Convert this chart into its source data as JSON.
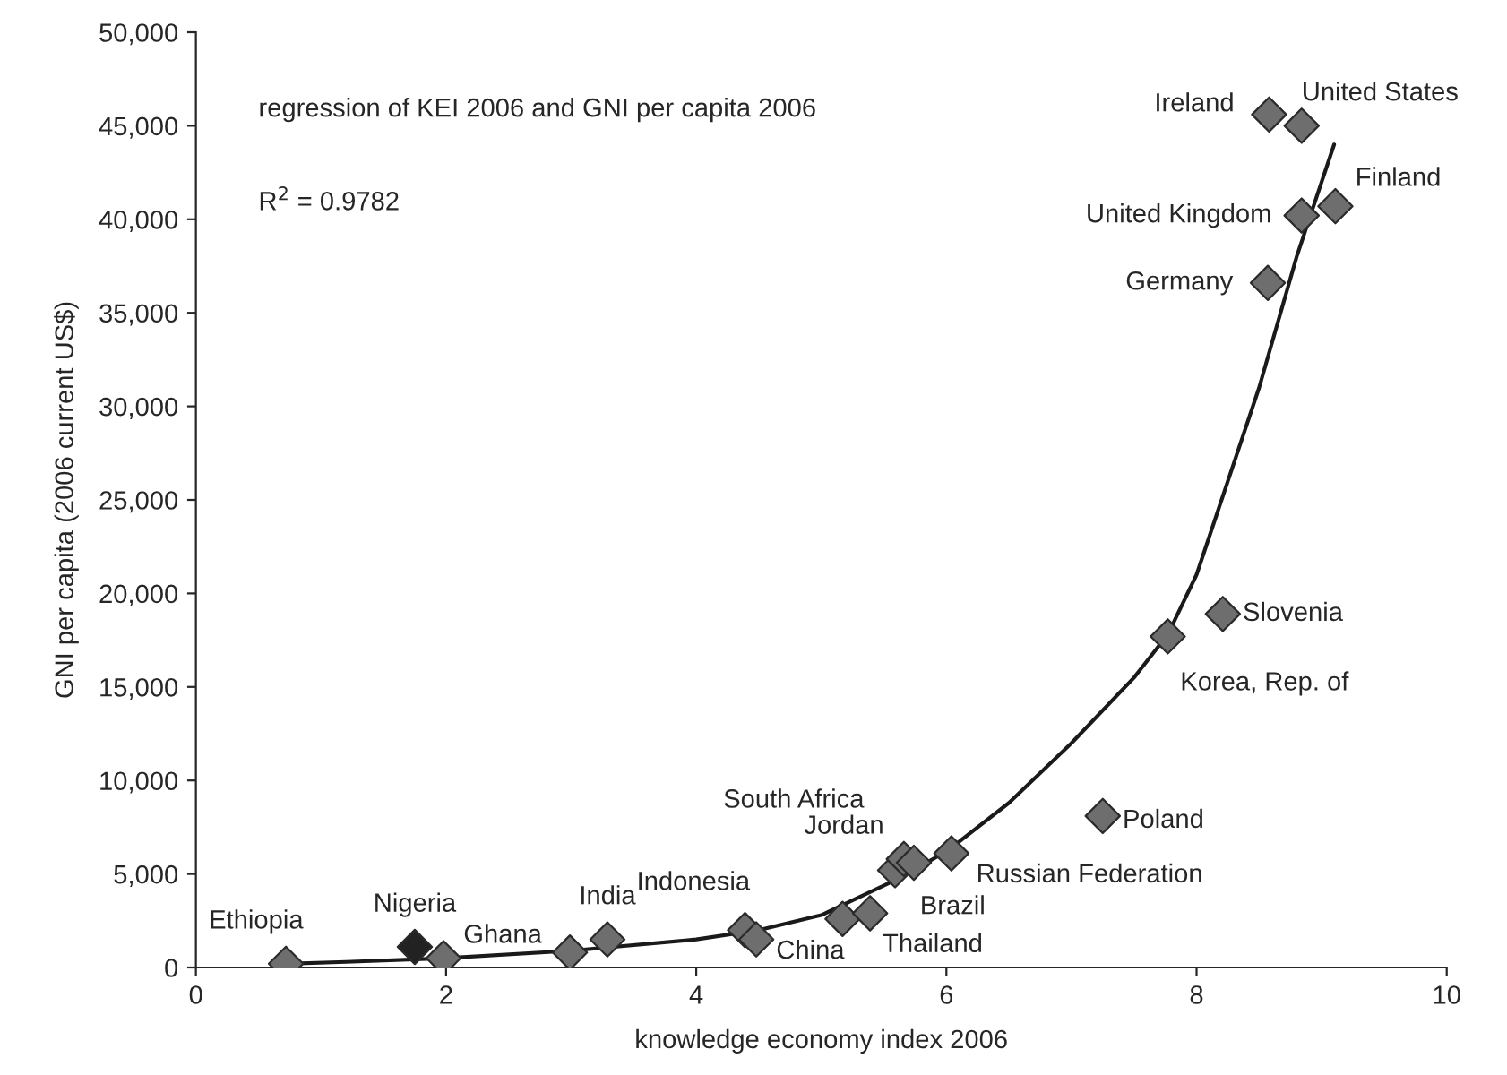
{
  "chart_data": {
    "type": "scatter",
    "xlabel": "knowledge economy index 2006",
    "ylabel": "GNI per capita (2006 current US$)",
    "xlim": [
      0,
      10
    ],
    "xticks": [
      0,
      2,
      4,
      6,
      8,
      10
    ],
    "ylim": [
      0,
      50000
    ],
    "yticks": [
      0,
      {
        "value": 5000,
        "label": "5,000"
      },
      {
        "value": 10000,
        "label": "10,000"
      },
      {
        "value": 15000,
        "label": "15,000"
      },
      {
        "value": 20000,
        "label": "20,000"
      },
      {
        "value": 25000,
        "label": "25,000"
      },
      {
        "value": 30000,
        "label": "30,000"
      },
      {
        "value": 35000,
        "label": "35,000"
      },
      {
        "value": 40000,
        "label": "40,000"
      },
      {
        "value": 45000,
        "label": "45,000"
      },
      {
        "value": 50000,
        "label": "50,000"
      }
    ],
    "grid": false,
    "legend": false,
    "series": [
      {
        "marker": "diamond",
        "x": [
          0.72,
          1.75,
          1.98,
          2.99,
          3.29,
          4.39,
          4.48,
          5.17,
          5.39,
          5.59,
          5.66,
          5.74,
          6.04,
          7.25,
          7.77,
          8.21,
          8.57,
          8.58,
          8.84,
          8.84,
          9.11
        ],
        "values": [
          200,
          1100,
          500,
          800,
          1500,
          2000,
          1500,
          2600,
          2900,
          5200,
          5800,
          5600,
          6100,
          8100,
          17700,
          18900,
          36600,
          45600,
          45000,
          40200,
          40700
        ],
        "colors": [
          "#6e6e6e",
          "#222222",
          "#6e6e6e",
          "#6e6e6e",
          "#6e6e6e",
          "#6e6e6e",
          "#6e6e6e",
          "#6e6e6e",
          "#6e6e6e",
          "#6e6e6e",
          "#6e6e6e",
          "#6e6e6e",
          "#6e6e6e",
          "#6e6e6e",
          "#6e6e6e",
          "#6e6e6e",
          "#6e6e6e",
          "#6e6e6e",
          "#6e6e6e",
          "#6e6e6e",
          "#6e6e6e"
        ]
      },
      {
        "type": "line",
        "color": "#1a1a1a",
        "marker": "none",
        "line_style": "solid",
        "x": [
          0.72,
          1.2,
          2.0,
          3.0,
          4.0,
          4.5,
          5.0,
          5.6,
          6.0,
          6.5,
          7.0,
          7.5,
          7.77,
          8.0,
          8.5,
          8.8,
          9.1
        ],
        "values": [
          200,
          300,
          500,
          900,
          1500,
          2000,
          2800,
          4700,
          6200,
          8800,
          12000,
          15500,
          17800,
          21000,
          31000,
          38000,
          44000
        ]
      }
    ],
    "annotations": [
      "regression of KEI 2006 and GNI per capita 2006",
      "R$^{2}$ = 0.9782",
      {
        "text": "Ethiopia",
        "x": 0.72,
        "y": 200
      },
      {
        "text": "Nigeria",
        "x": 1.75,
        "y": 1100
      },
      {
        "text": "Ghana",
        "x": 1.98,
        "y": 500
      },
      {
        "text": "India",
        "x": 3.29,
        "y": 1500
      },
      {
        "text": "Indonesia",
        "x": 4.39,
        "y": 2000
      },
      {
        "text": "China",
        "x": 4.48,
        "y": 1500
      },
      {
        "text": "Thailand",
        "x": 5.39,
        "y": 2900
      },
      {
        "text": "Brazil",
        "x": 5.59,
        "y": 5200
      },
      {
        "text": "Jordan",
        "x": 5.66,
        "y": 5800
      },
      {
        "text": "South Africa",
        "x": 5.74,
        "y": 5600
      },
      {
        "text": "Russian Federation",
        "x": 6.04,
        "y": 6100
      },
      {
        "text": "Poland",
        "x": 7.25,
        "y": 8100
      },
      {
        "text": "Korea, Rep. of",
        "x": 7.77,
        "y": 17700
      },
      {
        "text": "Slovenia",
        "x": 8.21,
        "y": 18900
      },
      {
        "text": "Germany",
        "x": 8.57,
        "y": 36600
      },
      {
        "text": "Ireland",
        "x": 8.58,
        "y": 45600
      },
      {
        "text": "United States",
        "x": 8.84,
        "y": 45000
      },
      {
        "text": "United Kingdom",
        "x": 8.84,
        "y": 40200
      },
      {
        "text": "Finland",
        "x": 9.11,
        "y": 40700
      }
    ]
  }
}
